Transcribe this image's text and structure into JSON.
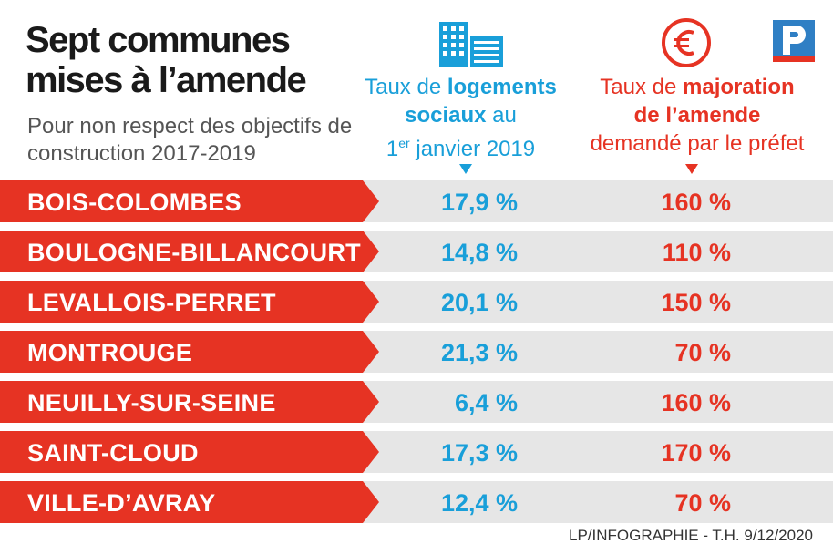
{
  "title": "Sept communes mises à l’amende",
  "subtitle": "Pour non respect des objectifs de construction 2017-2019",
  "columns": {
    "logements": {
      "part1": "Taux de ",
      "bold1": "logements",
      "bold2": "sociaux",
      "part2": " au",
      "ordinal": "1",
      "ordinal_sup": "er",
      "part3": " janvier 2019"
    },
    "majoration": {
      "part1": "Taux de ",
      "bold1": "majoration",
      "bold2": "de l’amende",
      "part2": "demandé par le préfet"
    }
  },
  "colors": {
    "blue": "#199fd9",
    "red": "#e63323",
    "band": "#e6e6e6"
  },
  "icons": {
    "logements": "building-icon",
    "majoration": "euro-icon",
    "logo": "le-parisien-logo-icon"
  },
  "chart_data": {
    "type": "table",
    "title": "Sept communes mises à l’amende",
    "subtitle": "Pour non respect des objectifs de construction 2017-2019",
    "columns": [
      "Taux de logements sociaux au 1er janvier 2019",
      "Taux de majoration de l’amende demandé par le préfet"
    ],
    "rows": [
      {
        "commune": "BOIS-COLOMBES",
        "taux": "17,9 %",
        "majoration": "160 %",
        "taux_value": 17.9,
        "majoration_value": 160
      },
      {
        "commune": "BOULOGNE-BILLANCOURT",
        "taux": "14,8 %",
        "majoration": "110 %",
        "taux_value": 14.8,
        "majoration_value": 110
      },
      {
        "commune": "LEVALLOIS-PERRET",
        "taux": "20,1 %",
        "majoration": "150 %",
        "taux_value": 20.1,
        "majoration_value": 150
      },
      {
        "commune": "MONTROUGE",
        "taux": "21,3 %",
        "majoration": "70 %",
        "taux_value": 21.3,
        "majoration_value": 70
      },
      {
        "commune": "NEUILLY-SUR-SEINE",
        "taux": "6,4 %",
        "majoration": "160 %",
        "taux_value": 6.4,
        "majoration_value": 160
      },
      {
        "commune": "SAINT-CLOUD",
        "taux": "17,3 %",
        "majoration": "170 %",
        "taux_value": 17.3,
        "majoration_value": 170
      },
      {
        "commune": "VILLE-D’AVRAY",
        "taux": "12,4 %",
        "majoration": "70 %",
        "taux_value": 12.4,
        "majoration_value": 70
      }
    ]
  },
  "credit": "LP/INFOGRAPHIE - T.H.  9/12/2020"
}
